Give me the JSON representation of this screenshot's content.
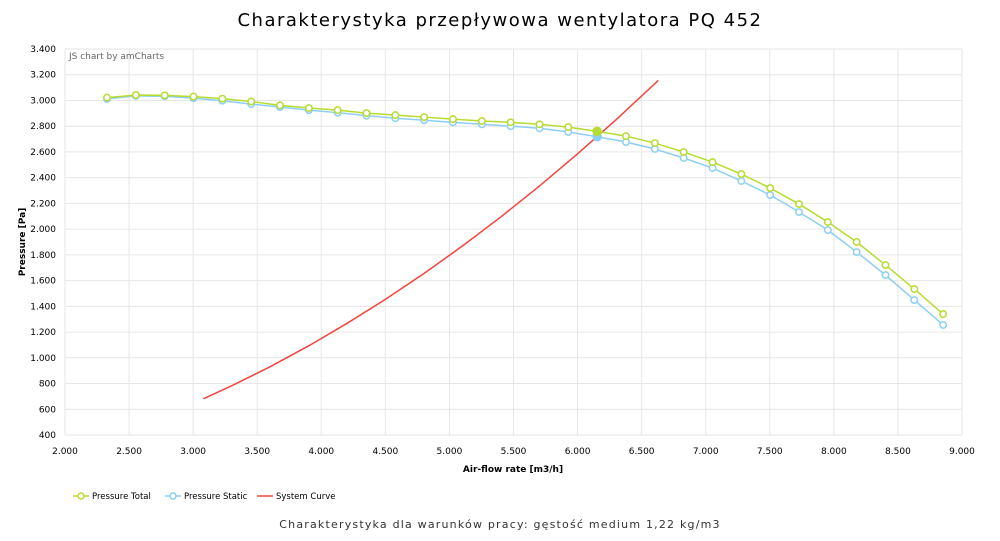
{
  "chart_data": {
    "type": "line",
    "title": "Charakterystyka przepływowa wentylatora PQ 452",
    "subtitle": "Charakterystyka dla warunków pracy: gęstość medium 1,22 kg/m3",
    "credit": "JS chart by amCharts",
    "xlabel": "Air-flow rate [m3/h]",
    "ylabel": "Pressure [Pa]",
    "xlim": [
      2000,
      9000
    ],
    "ylim": [
      400,
      3400
    ],
    "xticks": [
      "2.000",
      "2.500",
      "3.000",
      "3.500",
      "4.000",
      "4.500",
      "5.000",
      "5.500",
      "6.000",
      "6.500",
      "7.000",
      "7.500",
      "8.000",
      "8.500",
      "9.000"
    ],
    "yticks": [
      "400",
      "600",
      "800",
      "1.000",
      "1.200",
      "1.400",
      "1.600",
      "1.800",
      "2.000",
      "2.200",
      "2.400",
      "2.600",
      "2.800",
      "3.000",
      "3.200",
      "3.400"
    ],
    "grid": true,
    "legend_position": "bottom-left",
    "x": [
      2328,
      2553,
      2778,
      3003,
      3228,
      3453,
      3678,
      3903,
      4128,
      4353,
      4578,
      4803,
      5028,
      5253,
      5478,
      5703,
      5928,
      6153,
      6378,
      6603,
      6828,
      7053,
      7278,
      7503,
      7728,
      7953,
      8178,
      8403,
      8628,
      8853
    ],
    "highlight_index": 17,
    "series": [
      {
        "name": "Pressure Total",
        "color": "#b5dc2f",
        "values": [
          3022,
          3042,
          3040,
          3030,
          3014,
          2992,
          2962,
          2941,
          2925,
          2902,
          2886,
          2871,
          2855,
          2840,
          2830,
          2815,
          2793,
          2760,
          2723,
          2669,
          2599,
          2521,
          2428,
          2319,
          2195,
          2055,
          1900,
          1721,
          1534,
          1340
        ]
      },
      {
        "name": "Pressure Static",
        "color": "#8dcff4",
        "values": [
          3012,
          3036,
          3032,
          3018,
          2998,
          2972,
          2949,
          2925,
          2905,
          2882,
          2862,
          2846,
          2830,
          2815,
          2800,
          2784,
          2755,
          2718,
          2677,
          2623,
          2553,
          2475,
          2374,
          2265,
          2133,
          1993,
          1822,
          1643,
          1449,
          1255
        ]
      },
      {
        "name": "System Curve",
        "color": "#f4443b",
        "x": [
          3080,
          3300,
          3600,
          3900,
          4200,
          4500,
          4800,
          5100,
          5400,
          5700,
          6000,
          6300,
          6630
        ],
        "values": [
          681,
          782,
          930,
          1092,
          1267,
          1454,
          1654,
          1868,
          2094,
          2333,
          2585,
          2850,
          3156
        ]
      }
    ]
  }
}
